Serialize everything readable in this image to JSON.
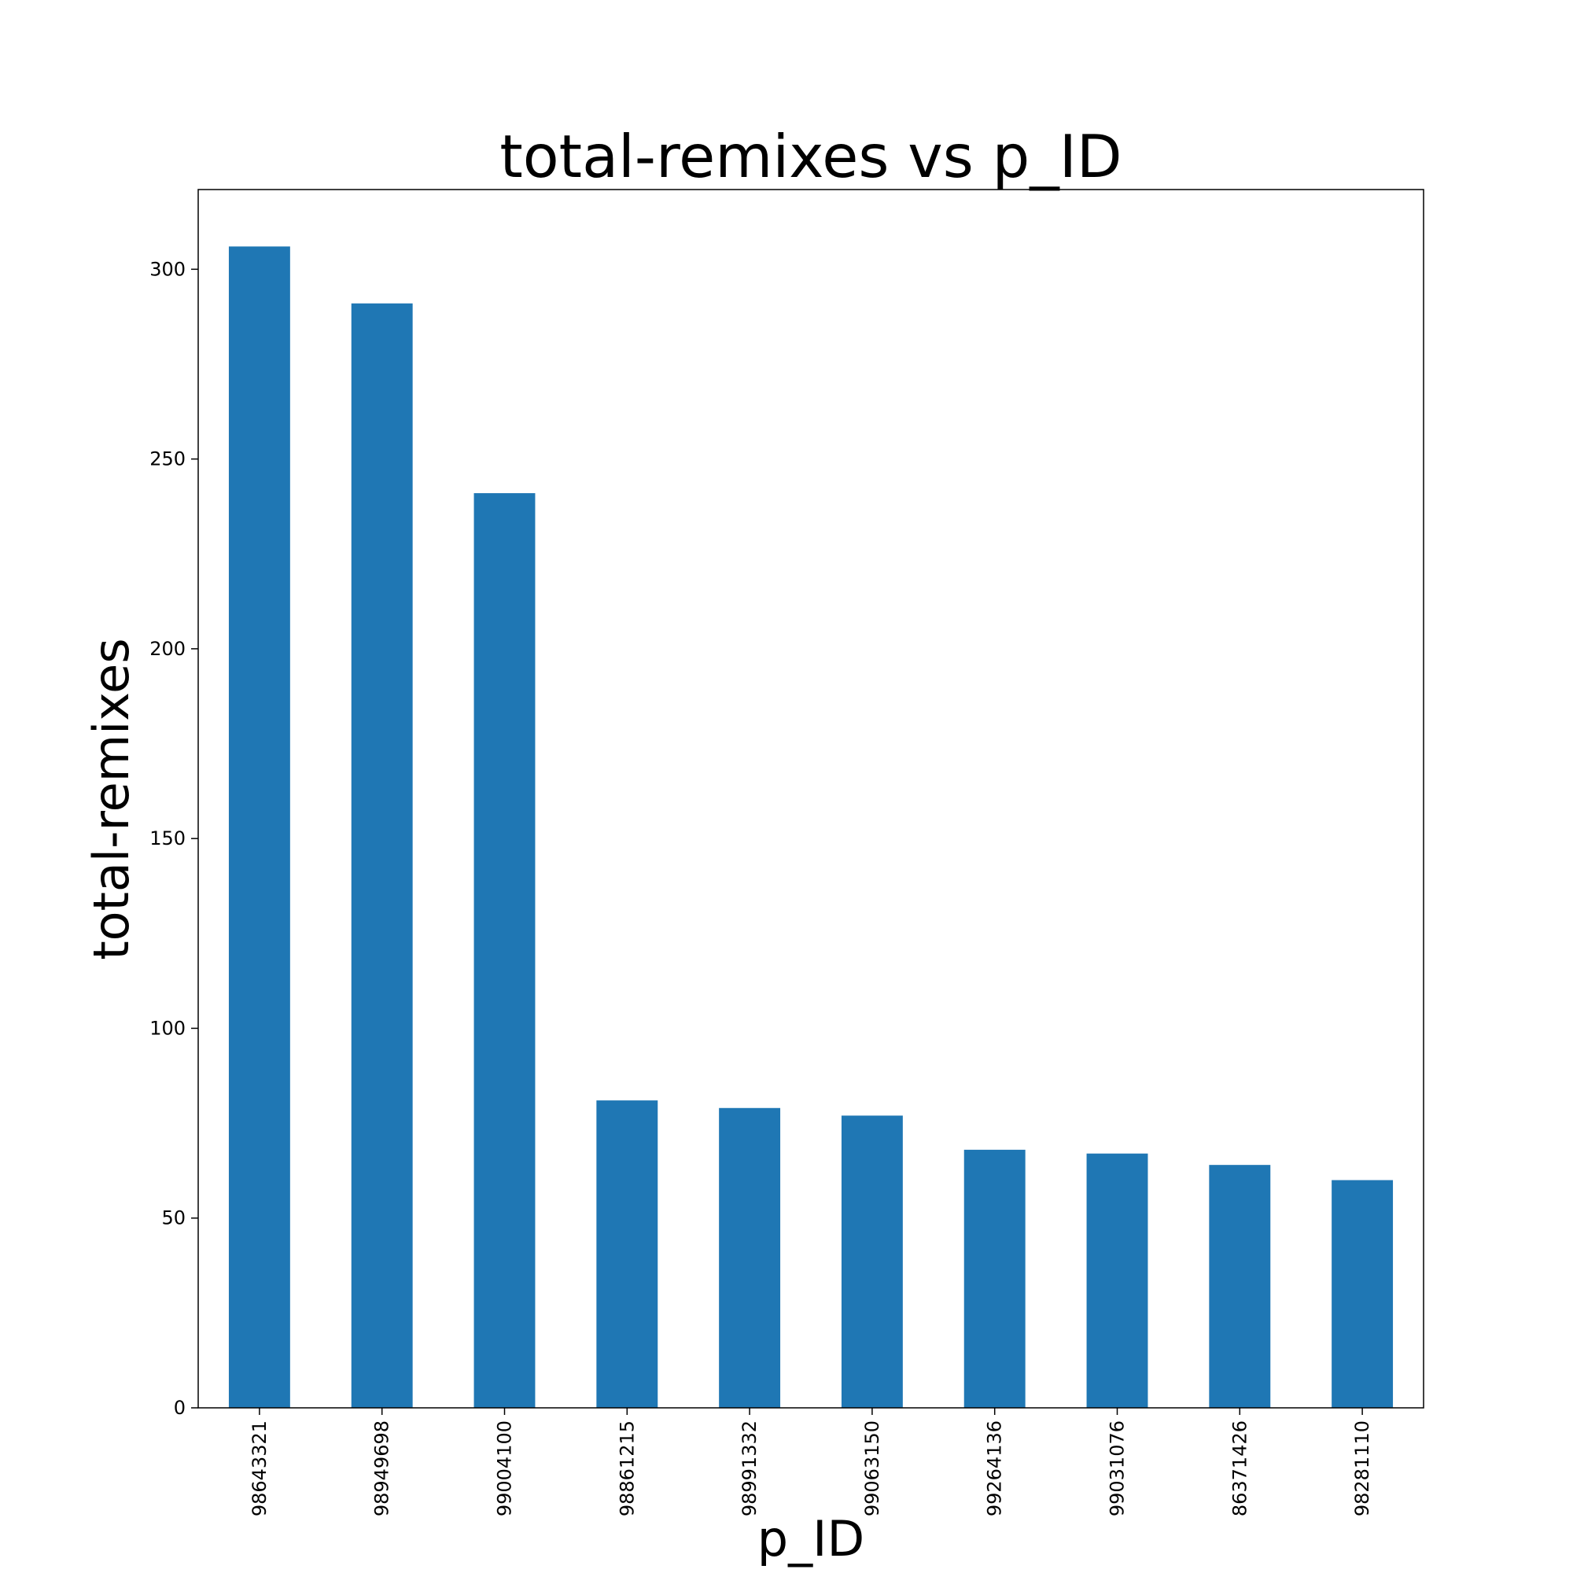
{
  "chart_data": {
    "type": "bar",
    "title": "total-remixes vs p_ID",
    "xlabel": "p_ID",
    "ylabel": "total-remixes",
    "categories": [
      "98643321",
      "98949698",
      "99004100",
      "98861215",
      "98991332",
      "99063150",
      "99264136",
      "99031076",
      "86371426",
      "98281110"
    ],
    "values": [
      306,
      291,
      241,
      81,
      79,
      77,
      68,
      67,
      64,
      60
    ],
    "ylim": [
      0,
      321
    ],
    "yticks": [
      0,
      50,
      100,
      150,
      200,
      250,
      300
    ],
    "bar_color": "#1f77b4",
    "grid": false,
    "legend": "none"
  }
}
